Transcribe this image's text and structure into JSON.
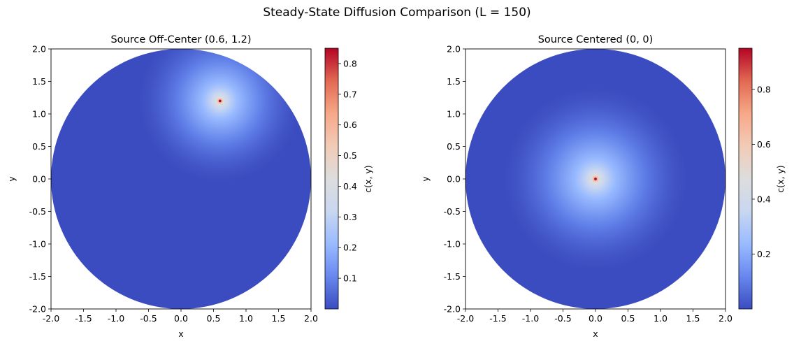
{
  "figure": {
    "title": "Steady-State Diffusion Comparison (L = 150)"
  },
  "colormap": {
    "name": "coolwarm",
    "stops": [
      "#3b4cc0",
      "#6788ee",
      "#9abbff",
      "#c9d7f0",
      "#dddddd",
      "#f2cbb7",
      "#f7a889",
      "#e26952",
      "#b40426"
    ]
  },
  "chart_data": [
    {
      "type": "heatmap",
      "title": "Source Off-Center (0.6, 1.2)",
      "xlabel": "x",
      "ylabel": "y",
      "xlim": [
        -2.0,
        2.0
      ],
      "ylim": [
        -2.0,
        2.0
      ],
      "xticks": [
        "-2.0",
        "-1.5",
        "-1.0",
        "-0.5",
        "0.0",
        "0.5",
        "1.0",
        "1.5",
        "2.0"
      ],
      "yticks": [
        "2.0",
        "1.5",
        "1.0",
        "0.5",
        "0.0",
        "-0.5",
        "-1.0",
        "-1.5",
        "-2.0"
      ],
      "domain_radius": 2.0,
      "source": [
        0.6,
        1.2
      ],
      "grid": false,
      "colorbar": {
        "label": "c(x, y)",
        "min": 0.0,
        "max": 0.85,
        "ticks": [
          "0.8",
          "0.7",
          "0.6",
          "0.5",
          "0.4",
          "0.3",
          "0.2",
          "0.1"
        ]
      }
    },
    {
      "type": "heatmap",
      "title": "Source Centered (0, 0)",
      "xlabel": "x",
      "ylabel": "y",
      "xlim": [
        -2.0,
        2.0
      ],
      "ylim": [
        -2.0,
        2.0
      ],
      "xticks": [
        "-2.0",
        "-1.5",
        "-1.0",
        "-0.5",
        "0.0",
        "0.5",
        "1.0",
        "1.5",
        "2.0"
      ],
      "yticks": [
        "2.0",
        "1.5",
        "1.0",
        "0.5",
        "0.0",
        "-0.5",
        "-1.0",
        "-1.5",
        "-2.0"
      ],
      "domain_radius": 2.0,
      "source": [
        0.0,
        0.0
      ],
      "grid": false,
      "colorbar": {
        "label": "c(x, y)",
        "min": 0.0,
        "max": 0.95,
        "ticks": [
          "0.8",
          "0.6",
          "0.4",
          "0.2"
        ]
      }
    }
  ]
}
